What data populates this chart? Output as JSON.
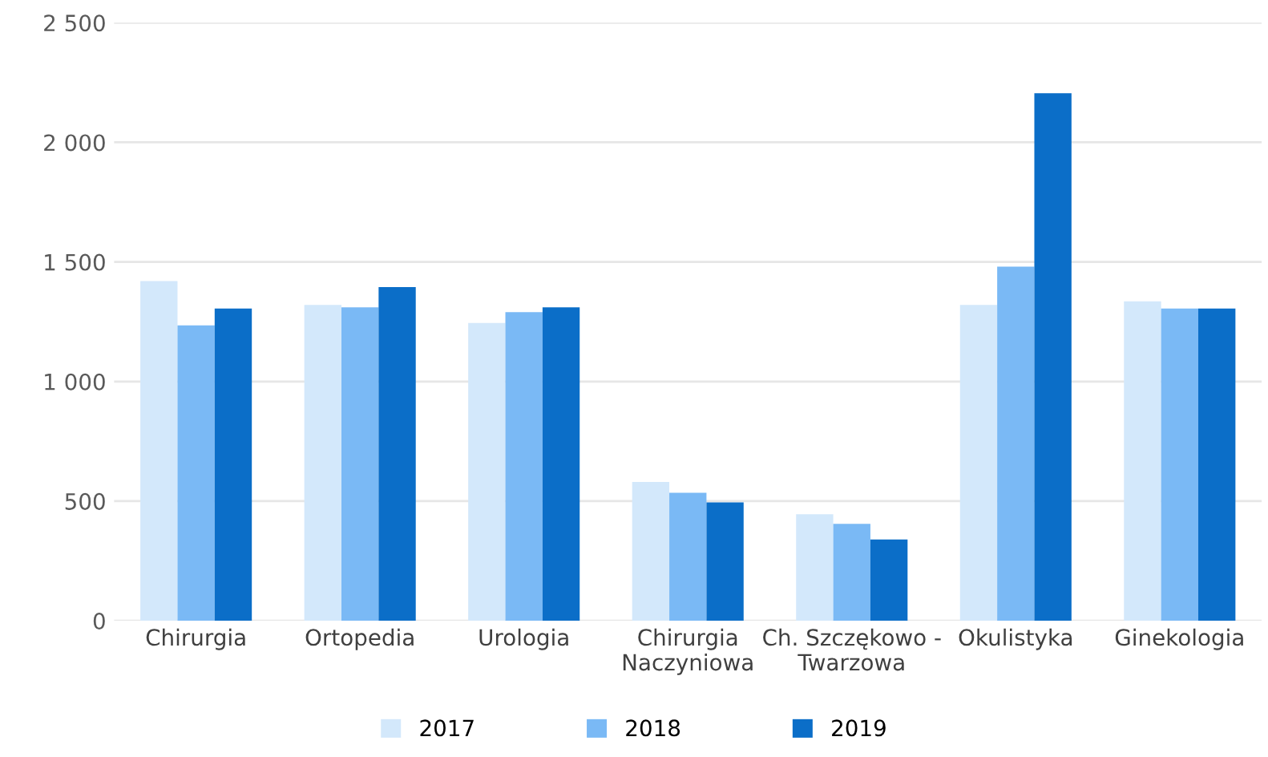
{
  "chart_data": {
    "type": "bar",
    "categories": [
      "Chirurgia",
      "Ortopedia",
      "Urologia",
      "Chirurgia\nNaczyniowa",
      "Ch. Szczękowo -\nTwarzowa",
      "Okulistyka",
      "Ginekologia"
    ],
    "series": [
      {
        "name": "2017",
        "color": "#d3e8fb",
        "values": [
          1420,
          1320,
          1245,
          580,
          445,
          1320,
          1335
        ]
      },
      {
        "name": "2018",
        "color": "#7ab9f5",
        "values": [
          1235,
          1310,
          1290,
          535,
          405,
          1480,
          1305
        ]
      },
      {
        "name": "2019",
        "color": "#0b6ec8",
        "values": [
          1305,
          1395,
          1310,
          495,
          340,
          2205,
          1305
        ]
      }
    ],
    "ylim": [
      0,
      2500
    ],
    "yticks": [
      0,
      500,
      {
        "value": 1000,
        "label": "1 000"
      },
      {
        "value": 1500,
        "label": "1 500"
      },
      {
        "value": 2000,
        "label": "2 000"
      },
      {
        "value": 2500,
        "label": "2 500"
      }
    ],
    "grid": "y",
    "legend": "bottom"
  }
}
